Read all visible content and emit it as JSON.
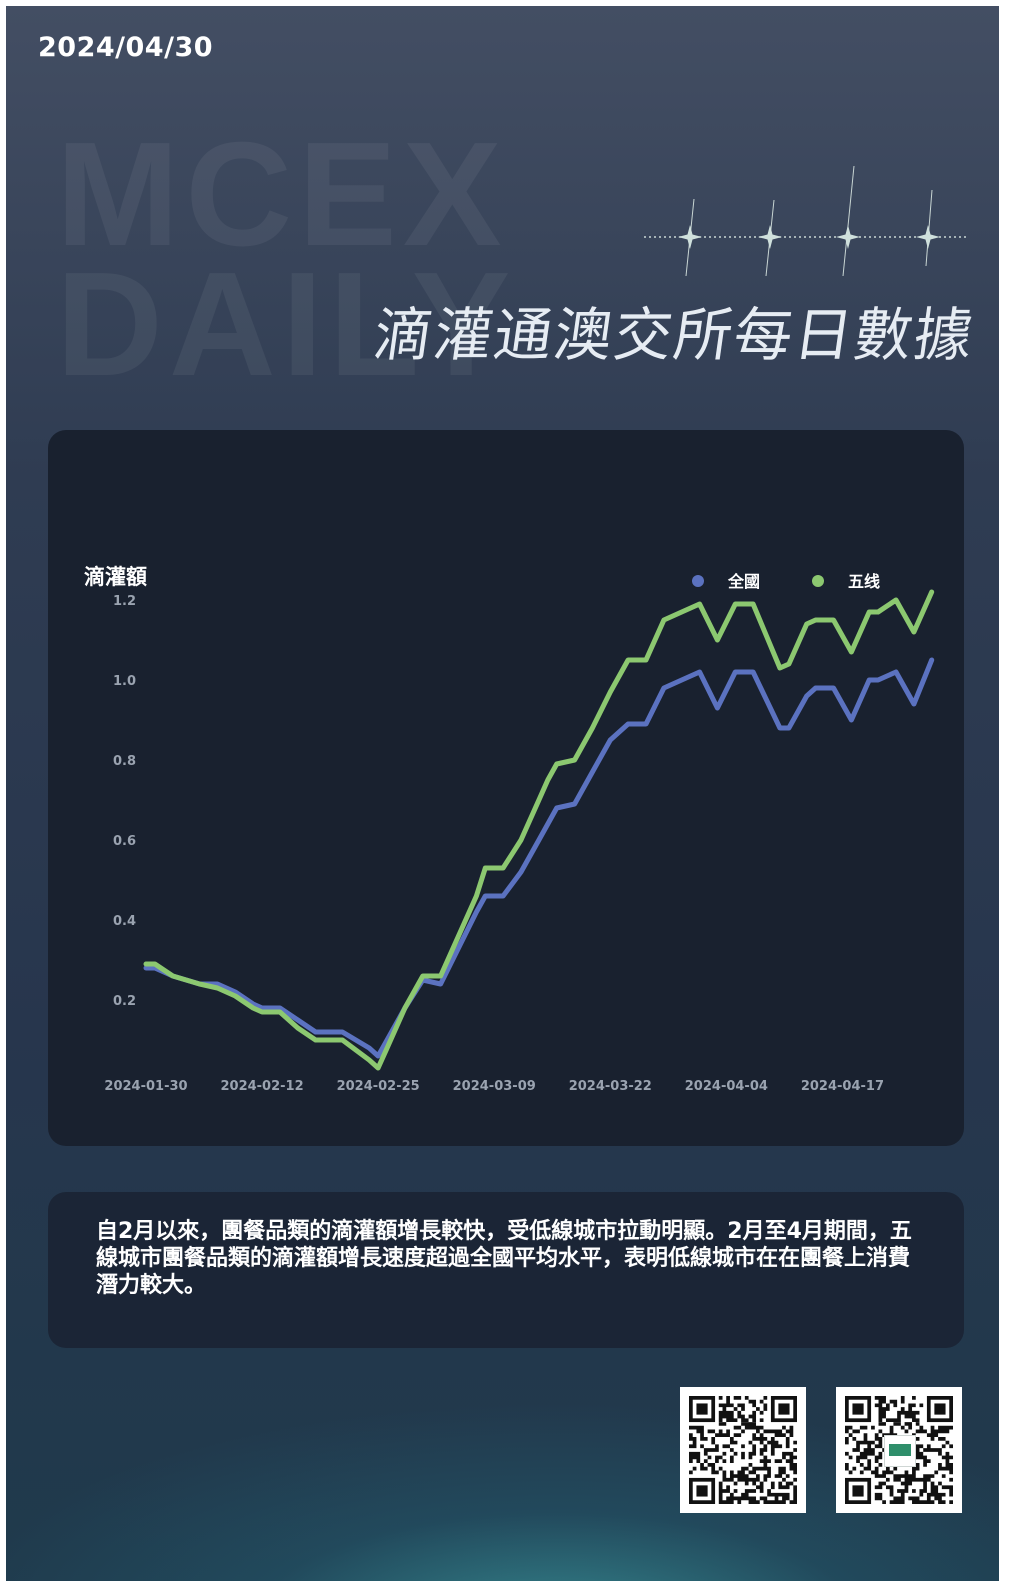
{
  "header": {
    "date": "2024/04/30",
    "watermark_line1": "MCEX",
    "watermark_line2": "DAILY",
    "title": "滴灌通澳交所每日數據"
  },
  "description": "自2月以來，團餐品類的滴灌額增長較快，受低線城市拉動明顯。2月至4月期間，五線城市團餐品類的滴灌額增長速度超過全國平均水平，表明低線城市在在團餐上消費潛力較大。",
  "colors": {
    "series_national": "#5b72c0",
    "series_tier5": "#8cc870",
    "axis_text": "#9aa3b0",
    "card": "#19212f"
  },
  "icons": [
    "sparkle-icon",
    "qr-code-icon",
    "legend-dot-icon"
  ],
  "chart_data": {
    "type": "line",
    "title": "",
    "ylabel": "滴灌額",
    "xlabel": "",
    "ylim": [
      0,
      1.25
    ],
    "yticks": [
      0.2,
      0.4,
      0.6,
      0.8,
      1.0,
      1.2
    ],
    "ytick_labels": [
      "0.2",
      "0.4",
      "0.6",
      "0.8",
      "1.0",
      "1.2"
    ],
    "x_start": "2024-01-30",
    "x_end": "2024-04-23",
    "xticks": [
      "2024-01-30",
      "2024-02-12",
      "2024-02-25",
      "2024-03-09",
      "2024-03-22",
      "2024-04-04",
      "2024-04-17"
    ],
    "legend_position": "top-right",
    "grid": false,
    "series": [
      {
        "name": "全國",
        "color": "#5b72c0",
        "points": [
          [
            "2024-01-30",
            0.28
          ],
          [
            "2024-01-31",
            0.28
          ],
          [
            "2024-02-02",
            0.26
          ],
          [
            "2024-02-05",
            0.24
          ],
          [
            "2024-02-07",
            0.24
          ],
          [
            "2024-02-09",
            0.22
          ],
          [
            "2024-02-11",
            0.19
          ],
          [
            "2024-02-12",
            0.18
          ],
          [
            "2024-02-14",
            0.18
          ],
          [
            "2024-02-16",
            0.15
          ],
          [
            "2024-02-18",
            0.12
          ],
          [
            "2024-02-21",
            0.12
          ],
          [
            "2024-02-24",
            0.08
          ],
          [
            "2024-02-25",
            0.06
          ],
          [
            "2024-02-26",
            0.1
          ],
          [
            "2024-02-28",
            0.18
          ],
          [
            "2024-03-01",
            0.25
          ],
          [
            "2024-03-03",
            0.24
          ],
          [
            "2024-03-05",
            0.33
          ],
          [
            "2024-03-07",
            0.42
          ],
          [
            "2024-03-08",
            0.46
          ],
          [
            "2024-03-10",
            0.46
          ],
          [
            "2024-03-12",
            0.52
          ],
          [
            "2024-03-14",
            0.6
          ],
          [
            "2024-03-15",
            0.64
          ],
          [
            "2024-03-16",
            0.68
          ],
          [
            "2024-03-18",
            0.69
          ],
          [
            "2024-03-20",
            0.77
          ],
          [
            "2024-03-22",
            0.85
          ],
          [
            "2024-03-24",
            0.89
          ],
          [
            "2024-03-26",
            0.89
          ],
          [
            "2024-03-28",
            0.98
          ],
          [
            "2024-03-30",
            1.0
          ],
          [
            "2024-04-01",
            1.02
          ],
          [
            "2024-04-03",
            0.93
          ],
          [
            "2024-04-05",
            1.02
          ],
          [
            "2024-04-07",
            1.02
          ],
          [
            "2024-04-10",
            0.88
          ],
          [
            "2024-04-11",
            0.88
          ],
          [
            "2024-04-13",
            0.96
          ],
          [
            "2024-04-14",
            0.98
          ],
          [
            "2024-04-16",
            0.98
          ],
          [
            "2024-04-18",
            0.9
          ],
          [
            "2024-04-20",
            1.0
          ],
          [
            "2024-04-21",
            1.0
          ],
          [
            "2024-04-23",
            1.02
          ],
          [
            "2024-04-25",
            0.94
          ],
          [
            "2024-04-27",
            1.05
          ]
        ]
      },
      {
        "name": "五线",
        "color": "#8cc870",
        "points": [
          [
            "2024-01-30",
            0.29
          ],
          [
            "2024-01-31",
            0.29
          ],
          [
            "2024-02-02",
            0.26
          ],
          [
            "2024-02-05",
            0.24
          ],
          [
            "2024-02-07",
            0.23
          ],
          [
            "2024-02-09",
            0.21
          ],
          [
            "2024-02-11",
            0.18
          ],
          [
            "2024-02-12",
            0.17
          ],
          [
            "2024-02-14",
            0.17
          ],
          [
            "2024-02-16",
            0.13
          ],
          [
            "2024-02-18",
            0.1
          ],
          [
            "2024-02-21",
            0.1
          ],
          [
            "2024-02-24",
            0.05
          ],
          [
            "2024-02-25",
            0.03
          ],
          [
            "2024-02-26",
            0.08
          ],
          [
            "2024-02-28",
            0.18
          ],
          [
            "2024-03-01",
            0.26
          ],
          [
            "2024-03-03",
            0.26
          ],
          [
            "2024-03-05",
            0.36
          ],
          [
            "2024-03-07",
            0.46
          ],
          [
            "2024-03-08",
            0.53
          ],
          [
            "2024-03-10",
            0.53
          ],
          [
            "2024-03-12",
            0.6
          ],
          [
            "2024-03-14",
            0.7
          ],
          [
            "2024-03-15",
            0.75
          ],
          [
            "2024-03-16",
            0.79
          ],
          [
            "2024-03-18",
            0.8
          ],
          [
            "2024-03-20",
            0.88
          ],
          [
            "2024-03-22",
            0.97
          ],
          [
            "2024-03-24",
            1.05
          ],
          [
            "2024-03-26",
            1.05
          ],
          [
            "2024-03-28",
            1.15
          ],
          [
            "2024-03-30",
            1.17
          ],
          [
            "2024-04-01",
            1.19
          ],
          [
            "2024-04-03",
            1.1
          ],
          [
            "2024-04-05",
            1.19
          ],
          [
            "2024-04-07",
            1.19
          ],
          [
            "2024-04-10",
            1.03
          ],
          [
            "2024-04-11",
            1.04
          ],
          [
            "2024-04-13",
            1.14
          ],
          [
            "2024-04-14",
            1.15
          ],
          [
            "2024-04-16",
            1.15
          ],
          [
            "2024-04-18",
            1.07
          ],
          [
            "2024-04-20",
            1.17
          ],
          [
            "2024-04-21",
            1.17
          ],
          [
            "2024-04-23",
            1.2
          ],
          [
            "2024-04-25",
            1.12
          ],
          [
            "2024-04-27",
            1.22
          ]
        ]
      }
    ]
  }
}
